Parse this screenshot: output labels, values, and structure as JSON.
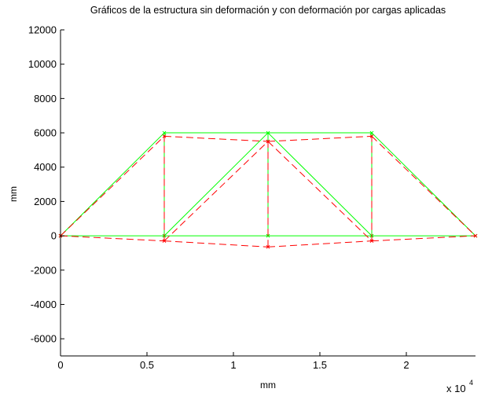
{
  "chart_data": {
    "type": "line",
    "title": "Gráficos de la estructura sin deformación y con deformación por cargas aplicadas",
    "xlabel": "mm",
    "ylabel": "mm",
    "x_multiplier_label": "x 10",
    "x_multiplier_exp": "4",
    "xlim": [
      0,
      24000
    ],
    "ylim": [
      -7000,
      12000
    ],
    "x_ticks": [
      0,
      5000,
      10000,
      15000,
      20000
    ],
    "x_tick_labels": [
      "0",
      "0.5",
      "1",
      "1.5",
      "2"
    ],
    "y_ticks": [
      -6000,
      -4000,
      -2000,
      0,
      2000,
      4000,
      6000,
      8000,
      10000,
      12000
    ],
    "y_tick_labels": [
      "-6000",
      "-4000",
      "-2000",
      "0",
      "2000",
      "4000",
      "6000",
      "8000",
      "10000",
      "12000"
    ],
    "grid": false,
    "series": [
      {
        "style": "solid",
        "color": "#00ff00",
        "nodes": [
          [
            0,
            0
          ],
          [
            6000,
            0
          ],
          [
            12000,
            0
          ],
          [
            18000,
            0
          ],
          [
            24000,
            0
          ],
          [
            6000,
            6000
          ],
          [
            12000,
            6000
          ],
          [
            18000,
            6000
          ]
        ]
      },
      {
        "style": "dashed",
        "color": "#ff0000",
        "nodes": [
          [
            0,
            0
          ],
          [
            6000,
            -300
          ],
          [
            12000,
            -650
          ],
          [
            18000,
            -300
          ],
          [
            24000,
            0
          ],
          [
            6000,
            5800
          ],
          [
            12000,
            5500
          ],
          [
            18000,
            5800
          ]
        ]
      }
    ],
    "members": [
      [
        0,
        1
      ],
      [
        1,
        2
      ],
      [
        2,
        3
      ],
      [
        3,
        4
      ],
      [
        5,
        6
      ],
      [
        6,
        7
      ],
      [
        0,
        5
      ],
      [
        1,
        5
      ],
      [
        1,
        6
      ],
      [
        2,
        6
      ],
      [
        6,
        3
      ],
      [
        3,
        7
      ],
      [
        7,
        4
      ]
    ]
  }
}
